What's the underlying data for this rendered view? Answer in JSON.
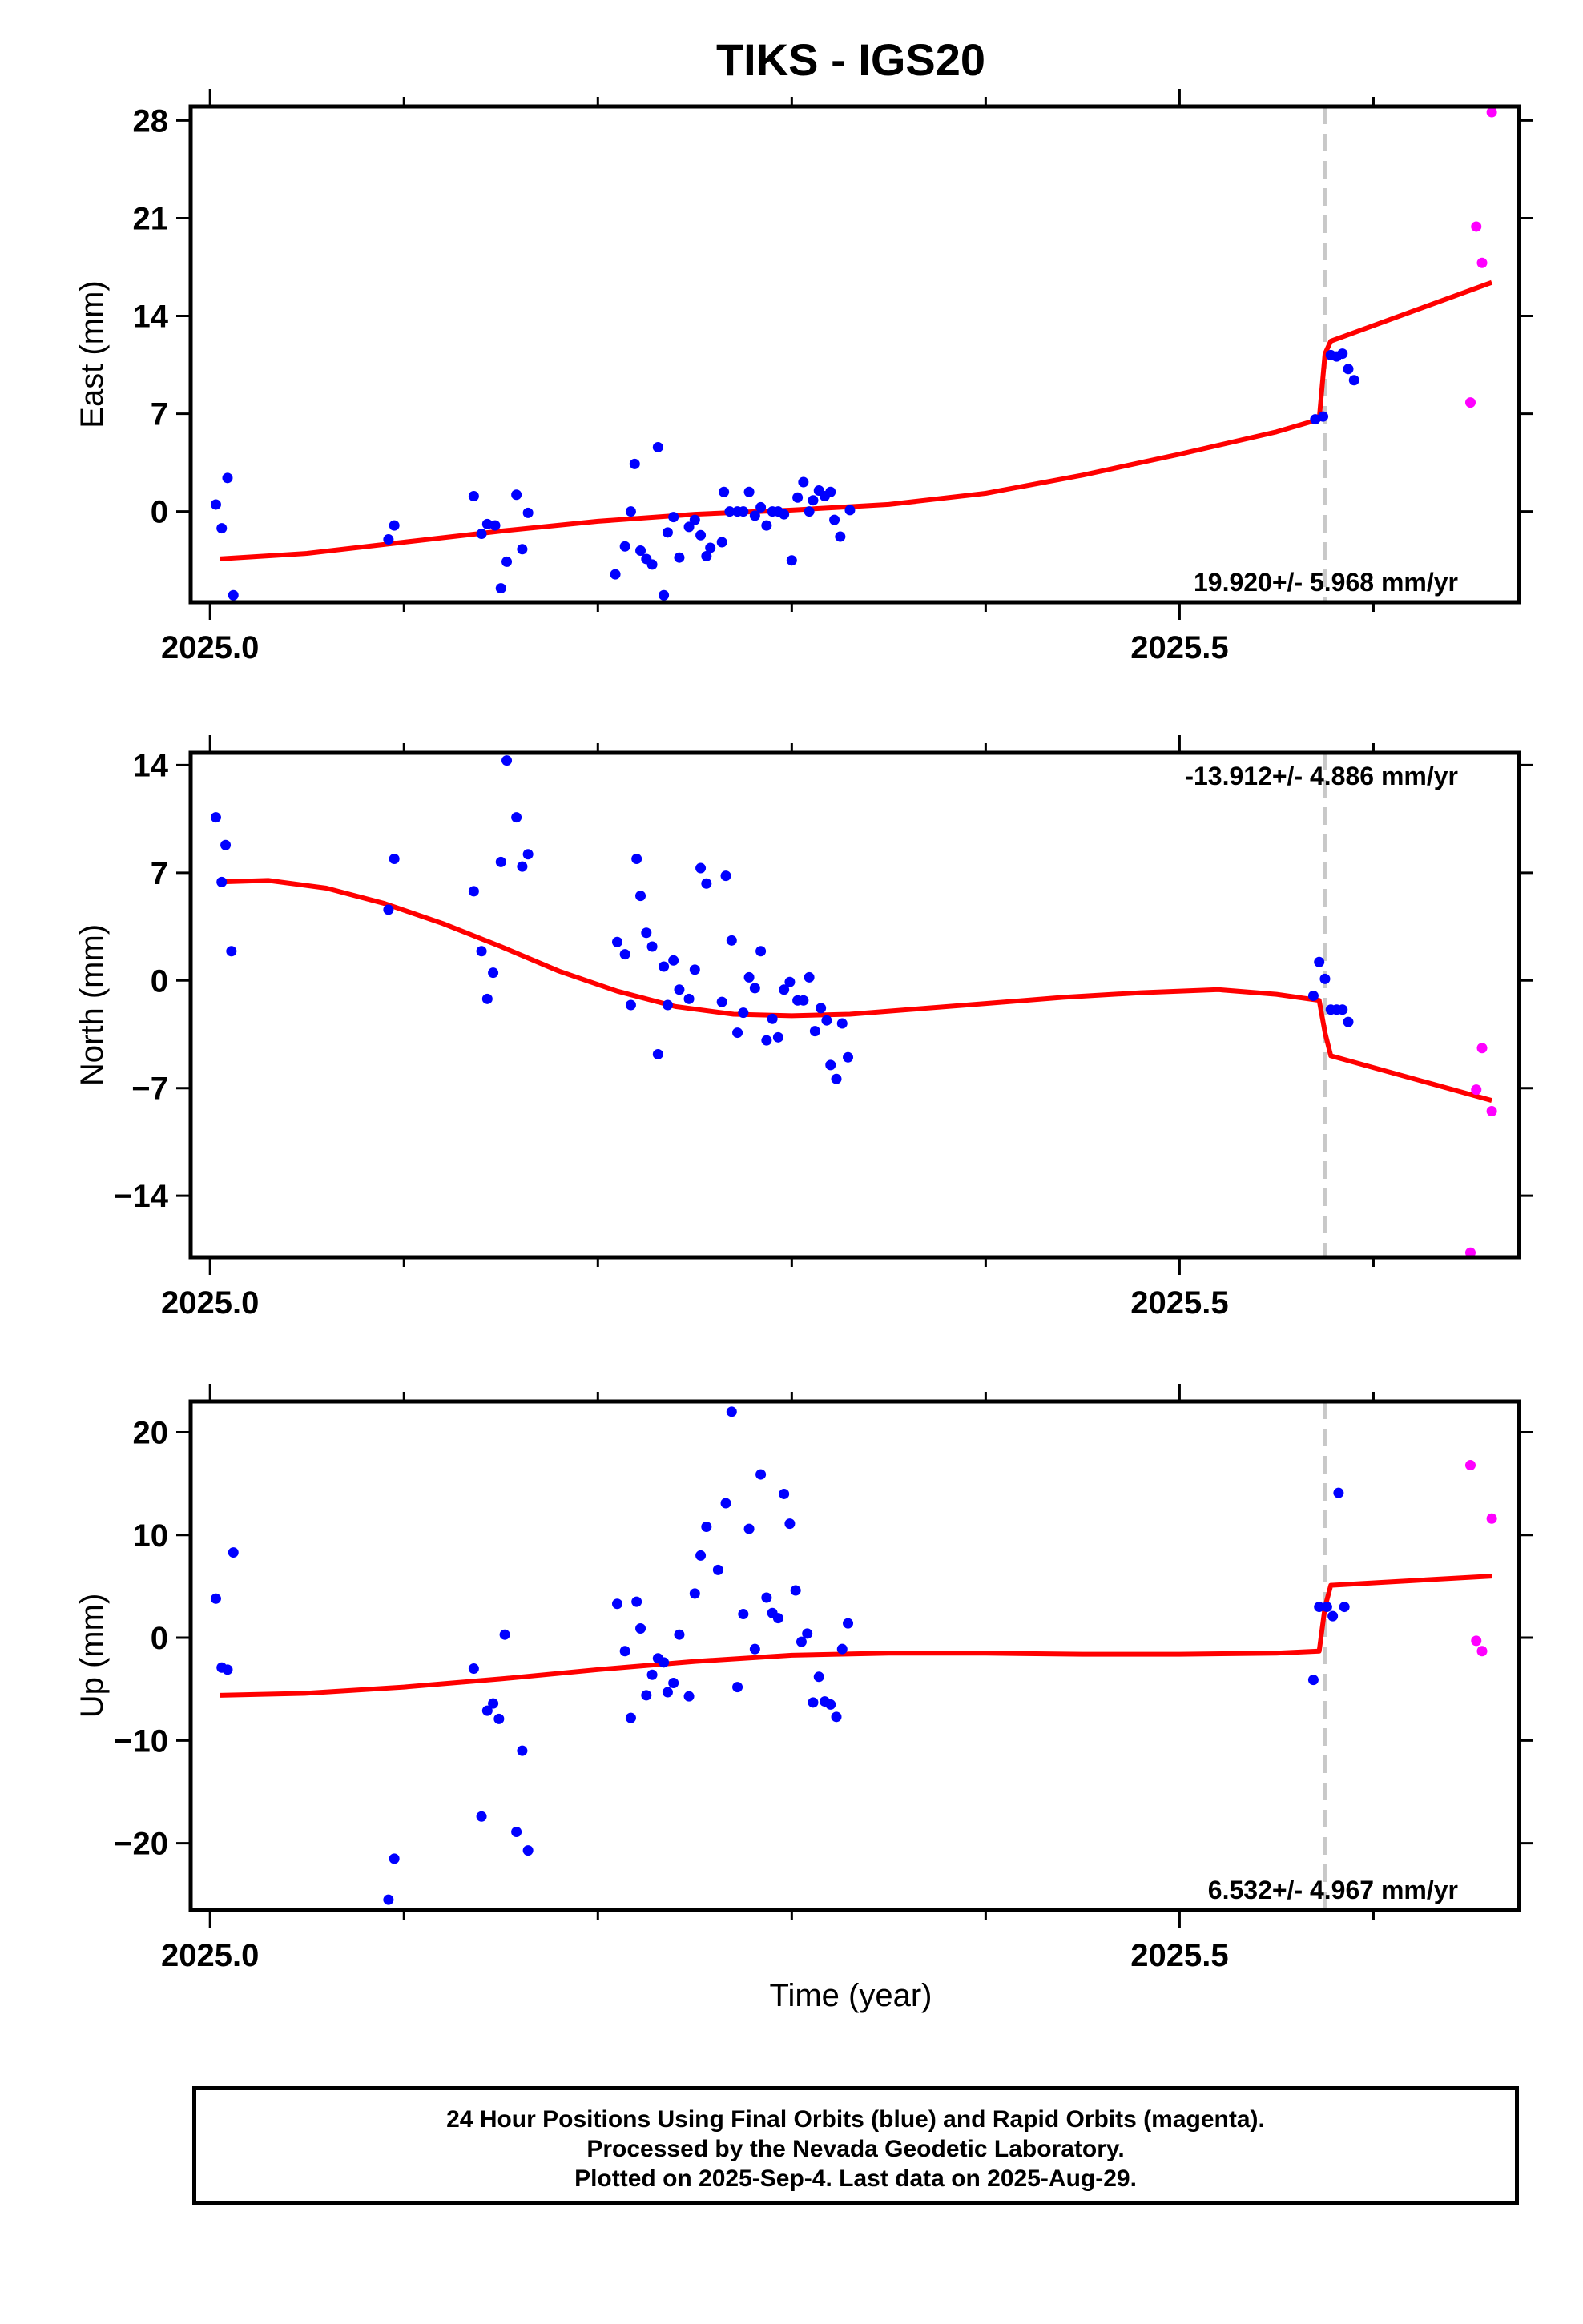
{
  "title": "TIKS - IGS20",
  "x_axis_title": "Time (year)",
  "footer": {
    "line1": "24 Hour Positions Using Final Orbits (blue) and Rapid Orbits (magenta).",
    "line2": "Processed by the Nevada Geodetic Laboratory.",
    "line3": "Plotted on 2025-Sep-4. Last data on 2025-Aug-29."
  },
  "colors": {
    "final": "#0000ff",
    "rapid": "#ff00ff",
    "model": "#ff0000",
    "event_line": "#c8c8c8",
    "frame": "#000000"
  },
  "chart_data": [
    {
      "type": "scatter",
      "name": "east",
      "ylabel": "East (mm)",
      "xlim": [
        2024.99,
        2025.675
      ],
      "ylim": [
        -6.5,
        29
      ],
      "yticks": [
        0,
        7,
        14,
        21,
        28
      ],
      "yticklabels": [
        "0",
        "7",
        "14",
        "21",
        "28"
      ],
      "xticklabels": [
        {
          "value": 2025.0,
          "label": "2025.0"
        },
        {
          "value": 2025.5,
          "label": "2025.5"
        }
      ],
      "rate": "19.920+/- 5.968 mm/yr",
      "rate_position": "bottom-right",
      "event_x": 2025.575,
      "final_points": [
        [
          2025.003,
          0.5
        ],
        [
          2025.006,
          -1.2
        ],
        [
          2025.009,
          2.4
        ],
        [
          2025.012,
          -6
        ],
        [
          2025.092,
          -2
        ],
        [
          2025.095,
          -1
        ],
        [
          2025.136,
          1.1
        ],
        [
          2025.14,
          -1.6
        ],
        [
          2025.143,
          -0.9
        ],
        [
          2025.147,
          -1
        ],
        [
          2025.15,
          -5.5
        ],
        [
          2025.153,
          -3.6
        ],
        [
          2025.158,
          1.2
        ],
        [
          2025.161,
          -2.7
        ],
        [
          2025.164,
          -0.1
        ],
        [
          2025.209,
          -4.5
        ],
        [
          2025.214,
          -2.5
        ],
        [
          2025.217,
          0
        ],
        [
          2025.219,
          3.4
        ],
        [
          2025.222,
          -2.8
        ],
        [
          2025.225,
          -3.4
        ],
        [
          2025.228,
          -3.8
        ],
        [
          2025.231,
          4.6
        ],
        [
          2025.234,
          -6
        ],
        [
          2025.236,
          -1.5
        ],
        [
          2025.239,
          -0.4
        ],
        [
          2025.242,
          -3.3
        ],
        [
          2025.247,
          -1.1
        ],
        [
          2025.25,
          -0.6
        ],
        [
          2025.253,
          -1.7
        ],
        [
          2025.256,
          -3.2
        ],
        [
          2025.258,
          -2.6
        ],
        [
          2025.264,
          -2.2
        ],
        [
          2025.265,
          1.4
        ],
        [
          2025.268,
          0
        ],
        [
          2025.272,
          0
        ],
        [
          2025.275,
          0
        ],
        [
          2025.278,
          1.4
        ],
        [
          2025.281,
          -0.3
        ],
        [
          2025.284,
          0.3
        ],
        [
          2025.287,
          -1
        ],
        [
          2025.29,
          0
        ],
        [
          2025.293,
          0
        ],
        [
          2025.296,
          -0.2
        ],
        [
          2025.3,
          -3.5
        ],
        [
          2025.303,
          1
        ],
        [
          2025.306,
          2.1
        ],
        [
          2025.309,
          0
        ],
        [
          2025.311,
          0.8
        ],
        [
          2025.314,
          1.5
        ],
        [
          2025.317,
          1.1
        ],
        [
          2025.32,
          1.4
        ],
        [
          2025.322,
          -0.6
        ],
        [
          2025.325,
          -1.8
        ],
        [
          2025.33,
          0.1
        ],
        [
          2025.57,
          6.6
        ],
        [
          2025.574,
          6.8
        ],
        [
          2025.578,
          11.2
        ],
        [
          2025.581,
          11.1
        ],
        [
          2025.584,
          11.3
        ],
        [
          2025.587,
          10.2
        ],
        [
          2025.59,
          9.4
        ]
      ],
      "rapid_points": [
        [
          2025.65,
          7.8
        ],
        [
          2025.653,
          20.4
        ],
        [
          2025.656,
          17.8
        ],
        [
          2025.661,
          28.6
        ]
      ],
      "model_curve": [
        [
          2025.005,
          -3.4
        ],
        [
          2025.05,
          -3
        ],
        [
          2025.1,
          -2.2
        ],
        [
          2025.15,
          -1.4
        ],
        [
          2025.2,
          -0.7
        ],
        [
          2025.25,
          -0.2
        ],
        [
          2025.3,
          0.1
        ],
        [
          2025.35,
          0.5
        ],
        [
          2025.4,
          1.3
        ],
        [
          2025.45,
          2.6
        ],
        [
          2025.5,
          4.1
        ],
        [
          2025.55,
          5.7
        ],
        [
          2025.572,
          6.6
        ],
        [
          2025.575,
          11.3
        ],
        [
          2025.578,
          12.2
        ],
        [
          2025.661,
          16.4
        ]
      ]
    },
    {
      "type": "scatter",
      "name": "north",
      "ylabel": "North (mm)",
      "xlim": [
        2024.99,
        2025.675
      ],
      "ylim": [
        -18,
        14.8
      ],
      "yticks": [
        -14,
        -7,
        0,
        7,
        14
      ],
      "yticklabels": [
        "−14",
        "−7",
        "0",
        "7",
        "14"
      ],
      "xticklabels": [
        {
          "value": 2025.0,
          "label": "2025.0"
        },
        {
          "value": 2025.5,
          "label": "2025.5"
        }
      ],
      "rate": "-13.912+/- 4.886 mm/yr",
      "rate_position": "top-right",
      "event_x": 2025.575,
      "final_points": [
        [
          2025.003,
          10.6
        ],
        [
          2025.006,
          6.4
        ],
        [
          2025.008,
          8.8
        ],
        [
          2025.011,
          1.9
        ],
        [
          2025.092,
          4.6
        ],
        [
          2025.095,
          7.9
        ],
        [
          2025.136,
          5.8
        ],
        [
          2025.14,
          1.9
        ],
        [
          2025.143,
          -1.2
        ],
        [
          2025.146,
          0.5
        ],
        [
          2025.15,
          7.7
        ],
        [
          2025.153,
          14.3
        ],
        [
          2025.158,
          10.6
        ],
        [
          2025.161,
          7.4
        ],
        [
          2025.164,
          8.2
        ],
        [
          2025.21,
          2.5
        ],
        [
          2025.214,
          1.7
        ],
        [
          2025.217,
          -1.6
        ],
        [
          2025.22,
          7.9
        ],
        [
          2025.222,
          5.5
        ],
        [
          2025.225,
          3.1
        ],
        [
          2025.228,
          2.2
        ],
        [
          2025.231,
          -4.8
        ],
        [
          2025.234,
          0.9
        ],
        [
          2025.236,
          -1.6
        ],
        [
          2025.239,
          1.3
        ],
        [
          2025.242,
          -0.6
        ],
        [
          2025.247,
          -1.2
        ],
        [
          2025.25,
          0.7
        ],
        [
          2025.253,
          7.3
        ],
        [
          2025.256,
          6.3
        ],
        [
          2025.264,
          -1.4
        ],
        [
          2025.266,
          6.8
        ],
        [
          2025.269,
          2.6
        ],
        [
          2025.272,
          -3.4
        ],
        [
          2025.275,
          -2.1
        ],
        [
          2025.278,
          0.2
        ],
        [
          2025.281,
          -0.5
        ],
        [
          2025.284,
          1.9
        ],
        [
          2025.287,
          -3.9
        ],
        [
          2025.29,
          -2.5
        ],
        [
          2025.293,
          -3.7
        ],
        [
          2025.296,
          -0.6
        ],
        [
          2025.299,
          -0.1
        ],
        [
          2025.303,
          -1.3
        ],
        [
          2025.306,
          -1.3
        ],
        [
          2025.309,
          0.2
        ],
        [
          2025.312,
          -3.3
        ],
        [
          2025.315,
          -1.8
        ],
        [
          2025.318,
          -2.6
        ],
        [
          2025.32,
          -5.5
        ],
        [
          2025.323,
          -6.4
        ],
        [
          2025.326,
          -2.8
        ],
        [
          2025.329,
          -5
        ],
        [
          2025.569,
          -1
        ],
        [
          2025.572,
          1.2
        ],
        [
          2025.575,
          0.1
        ],
        [
          2025.578,
          -1.9
        ],
        [
          2025.581,
          -1.9
        ],
        [
          2025.584,
          -1.9
        ],
        [
          2025.587,
          -2.7
        ]
      ],
      "rapid_points": [
        [
          2025.65,
          -17.7
        ],
        [
          2025.653,
          -7.1
        ],
        [
          2025.656,
          -4.4
        ],
        [
          2025.661,
          -8.5
        ]
      ],
      "model_curve": [
        [
          2025.005,
          6.4
        ],
        [
          2025.03,
          6.5
        ],
        [
          2025.06,
          6
        ],
        [
          2025.09,
          5
        ],
        [
          2025.12,
          3.7
        ],
        [
          2025.15,
          2.2
        ],
        [
          2025.18,
          0.6
        ],
        [
          2025.21,
          -0.7
        ],
        [
          2025.24,
          -1.7
        ],
        [
          2025.27,
          -2.2
        ],
        [
          2025.3,
          -2.3
        ],
        [
          2025.33,
          -2.2
        ],
        [
          2025.36,
          -1.9
        ],
        [
          2025.4,
          -1.5
        ],
        [
          2025.44,
          -1.1
        ],
        [
          2025.48,
          -0.8
        ],
        [
          2025.52,
          -0.6
        ],
        [
          2025.55,
          -0.9
        ],
        [
          2025.572,
          -1.3
        ],
        [
          2025.575,
          -3.4
        ],
        [
          2025.578,
          -4.9
        ],
        [
          2025.661,
          -7.8
        ]
      ]
    },
    {
      "type": "scatter",
      "name": "up",
      "ylabel": "Up (mm)",
      "xlim": [
        2024.99,
        2025.675
      ],
      "ylim": [
        -26.5,
        23
      ],
      "yticks": [
        -20,
        -10,
        0,
        10,
        20
      ],
      "yticklabels": [
        "−20",
        "−10",
        "0",
        "10",
        "20"
      ],
      "xticklabels": [
        {
          "value": 2025.0,
          "label": "2025.0"
        },
        {
          "value": 2025.5,
          "label": "2025.5"
        }
      ],
      "rate": "6.532+/- 4.967 mm/yr",
      "rate_position": "bottom-right",
      "event_x": 2025.575,
      "final_points": [
        [
          2025.003,
          3.8
        ],
        [
          2025.006,
          -2.9
        ],
        [
          2025.009,
          -3.1
        ],
        [
          2025.012,
          8.3
        ],
        [
          2025.092,
          -25.5
        ],
        [
          2025.095,
          -21.5
        ],
        [
          2025.136,
          -3
        ],
        [
          2025.14,
          -17.4
        ],
        [
          2025.143,
          -7.1
        ],
        [
          2025.146,
          -6.4
        ],
        [
          2025.149,
          -7.9
        ],
        [
          2025.152,
          0.3
        ],
        [
          2025.158,
          -18.9
        ],
        [
          2025.161,
          -11
        ],
        [
          2025.164,
          -20.7
        ],
        [
          2025.21,
          3.3
        ],
        [
          2025.214,
          -1.3
        ],
        [
          2025.217,
          -7.8
        ],
        [
          2025.22,
          3.5
        ],
        [
          2025.222,
          0.9
        ],
        [
          2025.225,
          -5.6
        ],
        [
          2025.228,
          -3.6
        ],
        [
          2025.231,
          -2
        ],
        [
          2025.234,
          -2.4
        ],
        [
          2025.236,
          -5.3
        ],
        [
          2025.239,
          -4.4
        ],
        [
          2025.242,
          0.3
        ],
        [
          2025.247,
          -5.7
        ],
        [
          2025.25,
          4.3
        ],
        [
          2025.253,
          8
        ],
        [
          2025.256,
          10.8
        ],
        [
          2025.262,
          6.6
        ],
        [
          2025.266,
          13.1
        ],
        [
          2025.269,
          22
        ],
        [
          2025.272,
          -4.8
        ],
        [
          2025.275,
          2.3
        ],
        [
          2025.278,
          10.6
        ],
        [
          2025.281,
          -1.1
        ],
        [
          2025.284,
          15.9
        ],
        [
          2025.287,
          3.9
        ],
        [
          2025.29,
          2.4
        ],
        [
          2025.293,
          1.9
        ],
        [
          2025.296,
          14
        ],
        [
          2025.299,
          11.1
        ],
        [
          2025.302,
          4.6
        ],
        [
          2025.305,
          -0.4
        ],
        [
          2025.308,
          0.4
        ],
        [
          2025.311,
          -6.3
        ],
        [
          2025.314,
          -3.8
        ],
        [
          2025.317,
          -6.2
        ],
        [
          2025.32,
          -6.5
        ],
        [
          2025.323,
          -7.7
        ],
        [
          2025.326,
          -1.1
        ],
        [
          2025.329,
          1.4
        ],
        [
          2025.569,
          -4.1
        ],
        [
          2025.572,
          3
        ],
        [
          2025.576,
          3
        ],
        [
          2025.579,
          2.1
        ],
        [
          2025.582,
          14.1
        ],
        [
          2025.585,
          3
        ]
      ],
      "rapid_points": [
        [
          2025.65,
          16.8
        ],
        [
          2025.653,
          -0.3
        ],
        [
          2025.656,
          -1.3
        ],
        [
          2025.661,
          11.6
        ]
      ],
      "model_curve": [
        [
          2025.005,
          -5.6
        ],
        [
          2025.05,
          -5.4
        ],
        [
          2025.1,
          -4.8
        ],
        [
          2025.15,
          -4
        ],
        [
          2025.2,
          -3.1
        ],
        [
          2025.25,
          -2.3
        ],
        [
          2025.3,
          -1.7
        ],
        [
          2025.35,
          -1.5
        ],
        [
          2025.4,
          -1.5
        ],
        [
          2025.45,
          -1.6
        ],
        [
          2025.5,
          -1.6
        ],
        [
          2025.55,
          -1.5
        ],
        [
          2025.572,
          -1.3
        ],
        [
          2025.575,
          3
        ],
        [
          2025.578,
          5.1
        ],
        [
          2025.661,
          6
        ]
      ]
    }
  ]
}
